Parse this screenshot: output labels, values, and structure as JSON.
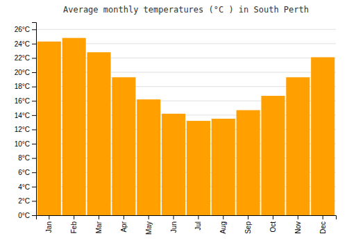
{
  "chart_data": {
    "type": "bar",
    "title": "Average monthly temperatures (°C ) in South Perth",
    "categories": [
      "Jan",
      "Feb",
      "Mar",
      "Apr",
      "May",
      "Jun",
      "Jul",
      "Aug",
      "Sep",
      "Oct",
      "Nov",
      "Dec"
    ],
    "values": [
      24.3,
      24.8,
      22.8,
      19.3,
      16.2,
      14.2,
      13.2,
      13.5,
      14.7,
      16.7,
      19.3,
      22.1
    ],
    "color": "#FFA000",
    "ylim": [
      0,
      27
    ],
    "yticks": [
      {
        "value": 0,
        "label": "0°C"
      },
      {
        "value": 2,
        "label": "2°C"
      },
      {
        "value": 4,
        "label": "4°C"
      },
      {
        "value": 6,
        "label": "6°C"
      },
      {
        "value": 8,
        "label": "8°C"
      },
      {
        "value": 10,
        "label": "10°C"
      },
      {
        "value": 12,
        "label": "12°C"
      },
      {
        "value": 14,
        "label": "14°C"
      },
      {
        "value": 16,
        "label": "16°C"
      },
      {
        "value": 18,
        "label": "18°C"
      },
      {
        "value": 20,
        "label": "20°C"
      },
      {
        "value": 22,
        "label": "22°C"
      },
      {
        "value": 24,
        "label": "24°C"
      },
      {
        "value": 26,
        "label": "26°C"
      }
    ],
    "grid": true
  }
}
